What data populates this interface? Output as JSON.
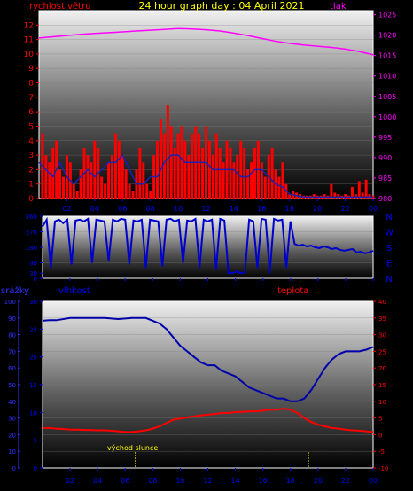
{
  "title": "24 hour graph day : 04 April 2021",
  "colors": {
    "background": "#000000",
    "panel_top": "#ffffff",
    "panel_bottom": "#000000",
    "wind": "#ff0000",
    "gust": "#ff0000",
    "wind_avg": "#2020b0",
    "pressure": "#ff00ff",
    "direction": "#0000cc",
    "rain_axis": "#3030ff",
    "humidity": "#0000aa",
    "temperature": "#ff0000",
    "title": "#ffff00",
    "wind_label": "#ff0000",
    "pressure_label": "#ff00ff",
    "rain_label": "#3030ff",
    "humidity_label": "#0000ff",
    "temperature_label": "#ff0000",
    "sunrise_label": "#ffff00"
  },
  "x_tick_labels": [
    "02",
    "04",
    "06",
    "08",
    "10",
    "12",
    "14",
    "16",
    "18",
    "20",
    "22",
    "00"
  ],
  "direction_letters": [
    "N",
    "W",
    "S",
    "E",
    "N"
  ],
  "sunrise_label": "východ slunce",
  "chart_data": [
    {
      "type": "line",
      "name": "wind-pressure",
      "title": "24 hour graph day : 04 April 2021",
      "left_axis_label": "rychlost větru",
      "right_axis_label": "tlak",
      "left_ylim": [
        0,
        13
      ],
      "right_ylim": [
        980,
        1026
      ],
      "left_ticks": [
        0,
        1,
        2,
        3,
        4,
        5,
        6,
        7,
        8,
        9,
        10,
        11,
        12
      ],
      "right_ticks": [
        980,
        985,
        990,
        995,
        1000,
        1005,
        1010,
        1015,
        1020,
        1025
      ],
      "series": [
        {
          "name": "",
          "axis": "right",
          "x": [
            0,
            1,
            2,
            3,
            4,
            5,
            6,
            7,
            8,
            9,
            10,
            11,
            12,
            13,
            14,
            15,
            16,
            17,
            18,
            19,
            20,
            21,
            22,
            23,
            24
          ],
          "values": [
            1019.3,
            1019.6,
            1019.9,
            1020.2,
            1020.4,
            1020.6,
            1020.8,
            1021.0,
            1021.2,
            1021.4,
            1021.6,
            1021.5,
            1021.3,
            1021.0,
            1020.5,
            1019.9,
            1019.2,
            1018.5,
            1018.0,
            1017.6,
            1017.3,
            1017.0,
            1016.6,
            1016.0,
            1015.2
          ]
        },
        {
          "name": "",
          "axis": "left",
          "style": "bars",
          "x": [
            0.25,
            0.5,
            0.75,
            1,
            1.25,
            1.5,
            1.75,
            2,
            2.25,
            2.5,
            2.75,
            3,
            3.25,
            3.5,
            3.75,
            4,
            4.25,
            4.5,
            4.75,
            5,
            5.25,
            5.5,
            5.75,
            6,
            6.25,
            6.5,
            6.75,
            7,
            7.25,
            7.5,
            7.75,
            8,
            8.25,
            8.5,
            8.75,
            9,
            9.25,
            9.5,
            9.75,
            10,
            10.25,
            10.5,
            10.75,
            11,
            11.25,
            11.5,
            11.75,
            12,
            12.25,
            12.5,
            12.75,
            13,
            13.25,
            13.5,
            13.75,
            14,
            14.25,
            14.5,
            14.75,
            15,
            15.25,
            15.5,
            15.75,
            16,
            16.25,
            16.5,
            16.75,
            17,
            17.25,
            17.5,
            17.75,
            18,
            18.25,
            18.5,
            18.75,
            19,
            19.25,
            19.5,
            19.75,
            20,
            20.25,
            20.5,
            20.75,
            21,
            21.25,
            21.5,
            21.75,
            22,
            22.25,
            22.5,
            22.75,
            23,
            23.25,
            23.5,
            23.75,
            24
          ],
          "values": [
            4.5,
            3.0,
            2.5,
            3.5,
            4.0,
            2.0,
            1.5,
            3.0,
            2.5,
            1.0,
            0.5,
            2.0,
            3.5,
            3.0,
            2.5,
            4.0,
            3.5,
            1.5,
            1.0,
            2.5,
            3.0,
            4.5,
            4.0,
            3.0,
            2.0,
            1.0,
            0.5,
            2.0,
            3.5,
            2.5,
            1.0,
            0.5,
            3.0,
            4.0,
            5.5,
            4.5,
            6.5,
            5.0,
            3.5,
            4.5,
            5.0,
            4.0,
            3.0,
            4.5,
            5.0,
            4.5,
            3.5,
            5.0,
            4.0,
            3.0,
            4.5,
            3.5,
            2.5,
            4.0,
            3.5,
            2.5,
            3.0,
            4.0,
            3.5,
            2.0,
            2.5,
            3.5,
            4.0,
            2.5,
            1.5,
            3.0,
            3.5,
            2.0,
            1.5,
            2.5,
            1.0,
            0.3,
            0.5,
            0.4,
            0.3,
            0.2,
            0.2,
            0.2,
            0.3,
            0.2,
            0.2,
            0.3,
            0.2,
            1.0,
            0.4,
            0.3,
            0.2,
            0.3,
            0.2,
            0.8,
            0.3,
            1.2,
            0.4,
            1.3,
            0.3,
            0.2
          ]
        },
        {
          "name": "",
          "axis": "left",
          "x": [
            0,
            0.5,
            1,
            1.5,
            2,
            2.5,
            3,
            3.5,
            4,
            4.5,
            5,
            5.5,
            6,
            6.5,
            7,
            7.5,
            8,
            8.5,
            9,
            9.5,
            10,
            10.5,
            11,
            11.5,
            12,
            12.5,
            13,
            13.5,
            14,
            14.5,
            15,
            15.5,
            16,
            16.5,
            17,
            17.5,
            18,
            18.5,
            19,
            19.5,
            20,
            20.5,
            21,
            21.5,
            22,
            22.5,
            23,
            23.5,
            24
          ],
          "values": [
            2.5,
            2.0,
            1.5,
            2.5,
            1.5,
            1.0,
            1.5,
            2.0,
            1.5,
            2.0,
            2.5,
            2.5,
            3.0,
            2.0,
            1.0,
            1.0,
            1.5,
            1.5,
            2.5,
            3.0,
            3.0,
            2.5,
            2.5,
            2.5,
            2.5,
            2.0,
            2.0,
            2.0,
            2.0,
            1.5,
            1.5,
            2.0,
            2.0,
            1.5,
            1.0,
            0.8,
            0.3,
            0.2,
            0.1,
            0.1,
            0.1,
            0.1,
            0.1,
            0.1,
            0.1,
            0.1,
            0.1,
            0.1,
            0.1
          ]
        }
      ],
      "x_range": [
        0,
        24
      ]
    },
    {
      "type": "line",
      "name": "wind-direction",
      "left_ylim": [
        0,
        360
      ],
      "left_ticks": [
        0,
        30,
        90,
        180,
        270,
        360
      ],
      "right_ticks": [
        "N",
        "W",
        "S",
        "E",
        "N"
      ],
      "series": [
        {
          "name": "",
          "x": [
            0,
            0.3,
            0.6,
            0.9,
            1.2,
            1.5,
            1.8,
            2.1,
            2.4,
            2.7,
            3.0,
            3.3,
            3.6,
            3.9,
            4.2,
            4.5,
            4.8,
            5.1,
            5.4,
            5.7,
            6.0,
            6.3,
            6.6,
            6.9,
            7.2,
            7.5,
            7.8,
            8.1,
            8.4,
            8.7,
            9.0,
            9.3,
            9.6,
            9.9,
            10.2,
            10.5,
            10.8,
            11.1,
            11.4,
            11.7,
            12.0,
            12.3,
            12.6,
            12.9,
            13.2,
            13.5,
            13.8,
            14.1,
            14.4,
            14.7,
            15.0,
            15.3,
            15.6,
            15.9,
            16.2,
            16.5,
            16.8,
            17.1,
            17.4,
            17.7,
            18.0,
            18.3,
            18.6,
            18.9,
            19.2,
            19.5,
            19.8,
            20.1,
            20.4,
            20.7,
            21.0,
            21.3,
            21.6,
            21.9,
            22.2,
            22.5,
            22.8,
            23.1,
            23.4,
            23.7,
            24
          ],
          "values": [
            300,
            340,
            60,
            330,
            340,
            320,
            340,
            80,
            335,
            340,
            330,
            345,
            90,
            340,
            335,
            330,
            100,
            340,
            330,
            345,
            340,
            80,
            335,
            330,
            340,
            60,
            340,
            335,
            330,
            70,
            340,
            345,
            330,
            340,
            90,
            335,
            330,
            345,
            60,
            340,
            330,
            340,
            50,
            345,
            335,
            30,
            30,
            40,
            30,
            35,
            340,
            330,
            60,
            345,
            340,
            30,
            345,
            335,
            340,
            60,
            330,
            200,
            190,
            195,
            185,
            190,
            180,
            175,
            185,
            180,
            170,
            175,
            165,
            160,
            165,
            170,
            150,
            155,
            145,
            150,
            160
          ]
        }
      ],
      "x_range": [
        0,
        24
      ]
    },
    {
      "type": "line",
      "name": "rain-humidity-temperature",
      "rain_axis_label": "srážky",
      "humidity_axis_label": "vlhkost",
      "temperature_axis_label": "teplota",
      "rain_ticks": [
        0,
        10,
        20,
        30,
        40,
        50,
        60,
        70,
        80,
        90,
        100
      ],
      "humidity_ticks": [
        0,
        5,
        10,
        15,
        20,
        25,
        30
      ],
      "temperature_ticks": [
        -10,
        -5,
        0,
        5,
        10,
        15,
        20,
        25,
        30,
        35,
        40
      ],
      "humidity_ylim": [
        0,
        30
      ],
      "temperature_ylim": [
        -10,
        40
      ],
      "rain_ylim": [
        0,
        100
      ],
      "series": [
        {
          "name": "",
          "axis": "humidity",
          "x": [
            0,
            0.5,
            1,
            1.5,
            2,
            2.5,
            3,
            3.5,
            4,
            4.5,
            5,
            5.5,
            6,
            6.5,
            7,
            7.5,
            8,
            8.5,
            9,
            9.5,
            10,
            10.5,
            11,
            11.5,
            12,
            12.5,
            13,
            13.5,
            14,
            14.5,
            15,
            15.5,
            16,
            16.5,
            17,
            17.5,
            18,
            18.5,
            19,
            19.5,
            20,
            20.5,
            21,
            21.5,
            22,
            22.5,
            23,
            23.5,
            24
          ],
          "values": [
            26.5,
            26.6,
            26.6,
            26.8,
            27.0,
            27.0,
            27.0,
            27.0,
            27.0,
            27.0,
            26.9,
            26.8,
            26.9,
            27.0,
            27.0,
            27.0,
            26.5,
            26.0,
            25.0,
            23.5,
            22.0,
            21.0,
            20.0,
            19.0,
            18.5,
            18.5,
            17.5,
            17.0,
            16.5,
            15.5,
            14.5,
            14.0,
            13.5,
            13.0,
            12.5,
            12.5,
            12.0,
            12.0,
            12.5,
            14.0,
            16.0,
            18.0,
            19.5,
            20.5,
            21.0,
            21.0,
            21.0,
            21.3,
            21.8
          ]
        },
        {
          "name": "",
          "axis": "temperature",
          "x": [
            0,
            0.5,
            1,
            1.5,
            2,
            2.5,
            3,
            3.5,
            4,
            4.5,
            5,
            5.5,
            6,
            6.5,
            7,
            7.5,
            8,
            8.5,
            9,
            9.5,
            10,
            10.5,
            11,
            11.5,
            12,
            12.5,
            13,
            13.5,
            14,
            14.5,
            15,
            15.5,
            16,
            16.5,
            17,
            17.5,
            18,
            18.5,
            19,
            19.5,
            20,
            20.5,
            21,
            21.5,
            22,
            22.5,
            23,
            23.5,
            24
          ],
          "values": [
            2.0,
            2.0,
            1.8,
            1.7,
            1.5,
            1.5,
            1.4,
            1.4,
            1.3,
            1.3,
            1.2,
            1.0,
            0.8,
            0.8,
            1.0,
            1.3,
            1.8,
            2.5,
            3.5,
            4.5,
            4.8,
            5.2,
            5.5,
            5.8,
            6.0,
            6.2,
            6.5,
            6.5,
            6.8,
            6.8,
            7.0,
            7.0,
            7.2,
            7.5,
            7.5,
            7.8,
            7.5,
            6.5,
            5.0,
            3.8,
            3.0,
            2.5,
            2.0,
            1.8,
            1.5,
            1.3,
            1.2,
            1.0,
            0.8
          ]
        }
      ],
      "sunrise_hour": 6.75,
      "sunset_hour": 19.3,
      "x_range": [
        0,
        24
      ]
    }
  ]
}
